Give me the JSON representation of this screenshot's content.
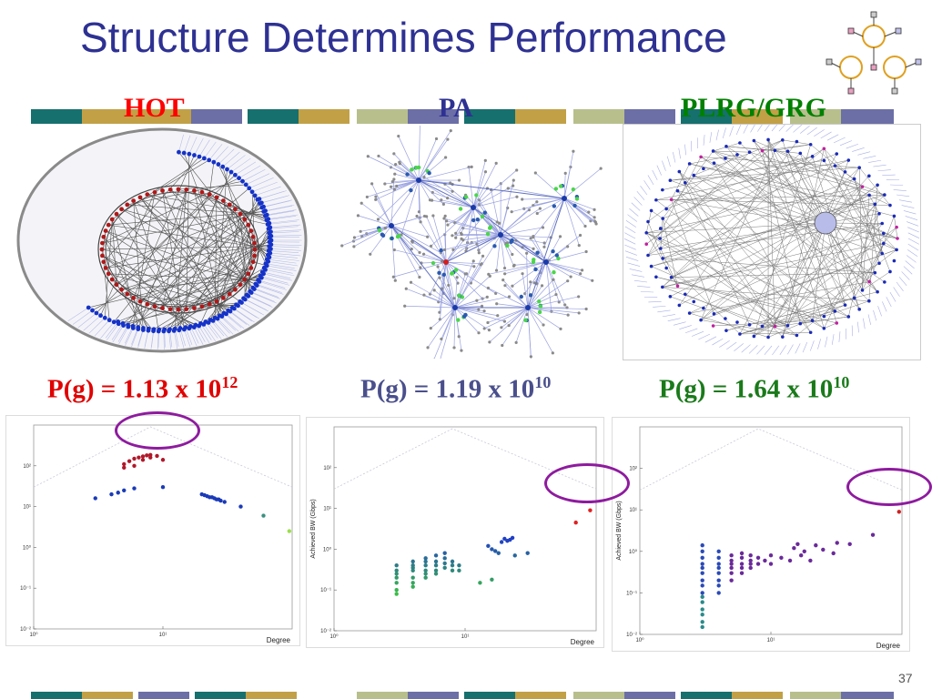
{
  "slide": {
    "title": "Structure Determines Performance",
    "page_number": "37"
  },
  "columns": [
    {
      "label": "HOT",
      "label_color": "#ff0000",
      "pg_text": "P(g) = 1.13 x 10",
      "pg_exp": "12",
      "pg_color": "#e00000"
    },
    {
      "label": "PA",
      "label_color": "#2e3192",
      "pg_text": "P(g) = 1.19 x 10",
      "pg_exp": "10",
      "pg_color": "#4a4f8c"
    },
    {
      "label": "PLRG/GRG",
      "label_color": "#008000",
      "pg_text": "P(g) = 1.64 x 10",
      "pg_exp": "10",
      "pg_color": "#1a7a1a"
    }
  ],
  "colors": {
    "title": "#2e3192",
    "bar_teal": "#16706e",
    "bar_gold": "#c1a046",
    "bar_slate": "#6c6fa6",
    "bar_sage": "#b8bf8c",
    "highlight_circle": "#8e1b9e"
  },
  "chart_data": [
    {
      "type": "scatter",
      "title": "",
      "xlabel": "Degree",
      "ylabel": "",
      "x_scale": "log",
      "y_scale": "log",
      "xlim": [
        1,
        100
      ],
      "ylim": [
        0.01,
        1000
      ],
      "x_ticks": [
        "10⁰",
        "10¹"
      ],
      "y_ticks": [
        "10²",
        "10¹",
        "10⁰",
        "10⁻¹",
        "10⁻²"
      ],
      "points": [
        [
          5,
          90
        ],
        [
          5,
          110
        ],
        [
          5.5,
          130
        ],
        [
          6,
          100
        ],
        [
          6,
          150
        ],
        [
          6.5,
          160
        ],
        [
          7,
          140
        ],
        [
          7,
          170
        ],
        [
          7.5,
          180
        ],
        [
          8,
          160
        ],
        [
          8,
          185
        ],
        [
          9,
          175
        ],
        [
          10,
          140
        ],
        [
          3,
          16
        ],
        [
          4,
          20
        ],
        [
          4.5,
          22
        ],
        [
          5,
          25
        ],
        [
          6,
          28
        ],
        [
          10,
          30
        ],
        [
          20,
          20
        ],
        [
          21,
          19
        ],
        [
          22,
          18
        ],
        [
          23,
          17
        ],
        [
          24,
          17
        ],
        [
          25,
          16
        ],
        [
          26,
          15
        ],
        [
          27,
          15
        ],
        [
          28,
          14
        ],
        [
          30,
          13
        ],
        [
          40,
          10
        ],
        [
          60,
          6
        ],
        [
          95,
          2.5
        ]
      ],
      "highlight": {
        "x": 7,
        "y": 130
      }
    },
    {
      "type": "scatter",
      "title": "",
      "xlabel": "Degree",
      "ylabel": "Achieved BW (Gbps)",
      "x_scale": "log",
      "y_scale": "log",
      "xlim": [
        1,
        100
      ],
      "ylim": [
        0.01,
        1000
      ],
      "x_ticks": [
        "10⁰",
        "10¹"
      ],
      "y_ticks": [
        "10²",
        "10¹",
        "10⁰",
        "10⁻¹",
        "10⁻²"
      ],
      "points": [
        [
          3,
          0.4
        ],
        [
          3,
          0.3
        ],
        [
          3,
          0.2
        ],
        [
          3,
          0.15
        ],
        [
          3,
          0.1
        ],
        [
          3,
          0.08
        ],
        [
          3,
          0.25
        ],
        [
          4,
          0.5
        ],
        [
          4,
          0.4
        ],
        [
          4,
          0.3
        ],
        [
          4,
          0.2
        ],
        [
          4,
          0.15
        ],
        [
          4,
          0.12
        ],
        [
          4,
          0.35
        ],
        [
          5,
          0.6
        ],
        [
          5,
          0.5
        ],
        [
          5,
          0.4
        ],
        [
          5,
          0.3
        ],
        [
          5,
          0.25
        ],
        [
          5,
          0.2
        ],
        [
          6,
          0.7
        ],
        [
          6,
          0.5
        ],
        [
          6,
          0.4
        ],
        [
          6,
          0.3
        ],
        [
          6,
          0.25
        ],
        [
          7,
          0.8
        ],
        [
          7,
          0.6
        ],
        [
          7,
          0.45
        ],
        [
          7,
          0.35
        ],
        [
          8,
          0.5
        ],
        [
          8,
          0.4
        ],
        [
          8,
          0.3
        ],
        [
          9,
          0.4
        ],
        [
          9,
          0.3
        ],
        [
          13,
          0.15
        ],
        [
          16,
          0.18
        ],
        [
          15,
          1.2
        ],
        [
          16,
          1.0
        ],
        [
          17,
          0.9
        ],
        [
          18,
          0.8
        ],
        [
          19,
          1.5
        ],
        [
          20,
          1.8
        ],
        [
          21,
          1.6
        ],
        [
          22,
          1.7
        ],
        [
          23,
          1.9
        ],
        [
          24,
          0.7
        ],
        [
          30,
          0.8
        ],
        [
          70,
          4.5
        ],
        [
          90,
          9.0
        ]
      ],
      "highlight": {
        "x": 90,
        "y": 9.0
      }
    },
    {
      "type": "scatter",
      "title": "",
      "xlabel": "Degree",
      "ylabel": "Achieved BW (Gbps)",
      "x_scale": "log",
      "y_scale": "log",
      "xlim": [
        1,
        100
      ],
      "ylim": [
        0.01,
        1000
      ],
      "x_ticks": [
        "10⁰",
        "10¹"
      ],
      "y_ticks": [
        "10²",
        "10¹",
        "10⁰",
        "10⁻¹",
        "10⁻²"
      ],
      "points": [
        [
          3,
          0.015
        ],
        [
          3,
          0.02
        ],
        [
          3,
          0.03
        ],
        [
          3,
          0.04
        ],
        [
          3,
          0.06
        ],
        [
          3,
          0.08
        ],
        [
          3,
          0.1
        ],
        [
          3,
          0.15
        ],
        [
          3,
          0.2
        ],
        [
          3,
          0.3
        ],
        [
          3,
          0.4
        ],
        [
          3,
          0.5
        ],
        [
          3,
          0.7
        ],
        [
          3,
          1.0
        ],
        [
          3,
          1.4
        ],
        [
          4,
          0.1
        ],
        [
          4,
          0.15
        ],
        [
          4,
          0.2
        ],
        [
          4,
          0.3
        ],
        [
          4,
          0.4
        ],
        [
          4,
          0.5
        ],
        [
          4,
          0.7
        ],
        [
          4,
          1.0
        ],
        [
          5,
          0.2
        ],
        [
          5,
          0.3
        ],
        [
          5,
          0.4
        ],
        [
          5,
          0.5
        ],
        [
          5,
          0.6
        ],
        [
          5,
          0.8
        ],
        [
          6,
          0.3
        ],
        [
          6,
          0.4
        ],
        [
          6,
          0.5
        ],
        [
          6,
          0.7
        ],
        [
          6,
          0.9
        ],
        [
          7,
          0.4
        ],
        [
          7,
          0.5
        ],
        [
          7,
          0.6
        ],
        [
          7,
          0.8
        ],
        [
          8,
          0.5
        ],
        [
          8,
          0.7
        ],
        [
          9,
          0.6
        ],
        [
          10,
          0.5
        ],
        [
          10,
          0.8
        ],
        [
          12,
          0.7
        ],
        [
          14,
          0.6
        ],
        [
          15,
          1.2
        ],
        [
          16,
          1.5
        ],
        [
          17,
          0.8
        ],
        [
          18,
          1.0
        ],
        [
          20,
          0.6
        ],
        [
          22,
          1.4
        ],
        [
          25,
          1.1
        ],
        [
          30,
          0.9
        ],
        [
          32,
          1.6
        ],
        [
          40,
          1.5
        ],
        [
          60,
          2.5
        ],
        [
          95,
          9.0
        ]
      ],
      "highlight": {
        "x": 95,
        "y": 9.0
      }
    }
  ]
}
